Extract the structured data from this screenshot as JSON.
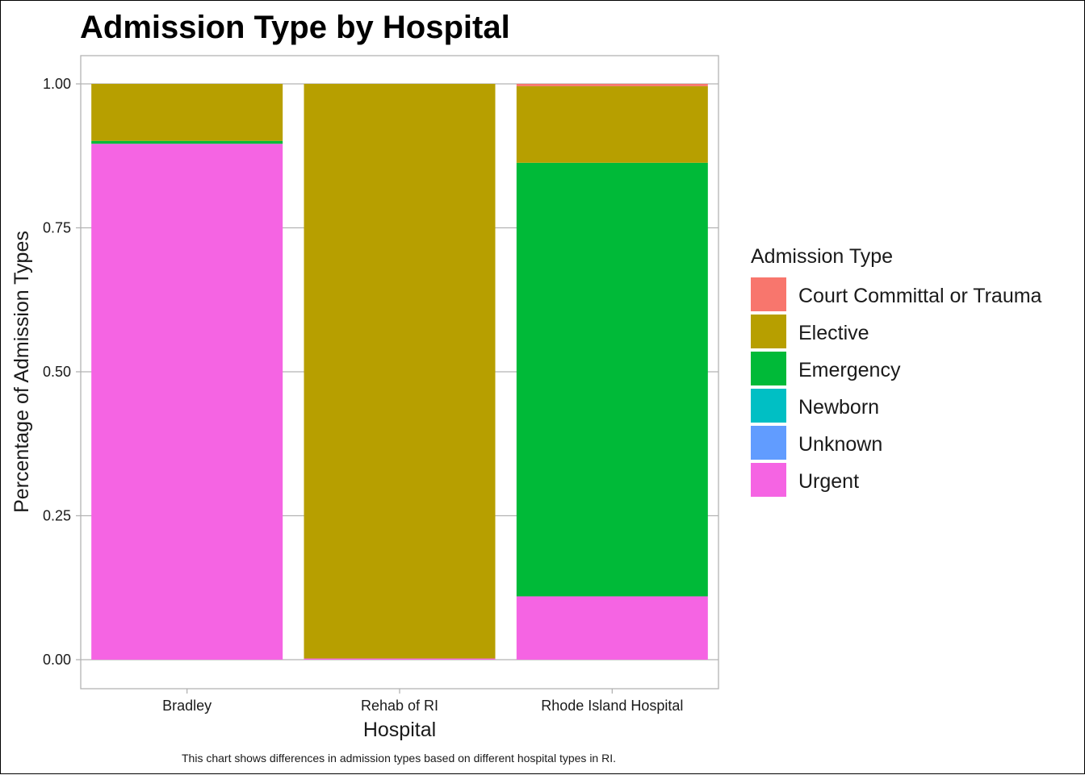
{
  "chart_data": {
    "type": "bar",
    "stacked": true,
    "title": "Admission Type by Hospital",
    "xlabel": "Hospital",
    "ylabel": "Percentage of Admission Types",
    "caption": "This chart shows differences in admission types based on different hospital types in RI.",
    "categories": [
      "Bradley",
      "Rehab of RI",
      "Rhode Island Hospital"
    ],
    "ylim": [
      0,
      1
    ],
    "yticks": [
      "0.00",
      "0.25",
      "0.50",
      "0.75",
      "1.00"
    ],
    "legend_title": "Admission Type",
    "legend_position": "right",
    "grid": true,
    "series": [
      {
        "name": "Court Committal or Trauma",
        "color": "#F8766D",
        "values": [
          0.0,
          0.0,
          0.004
        ]
      },
      {
        "name": "Elective",
        "color": "#B79F00",
        "values": [
          0.099,
          0.998,
          0.133
        ]
      },
      {
        "name": "Emergency",
        "color": "#00BA38",
        "values": [
          0.005,
          0.0,
          0.753
        ]
      },
      {
        "name": "Newborn",
        "color": "#00BFC4",
        "values": [
          0.0,
          0.0,
          0.0
        ]
      },
      {
        "name": "Unknown",
        "color": "#619CFF",
        "values": [
          0.0,
          0.0,
          0.0
        ]
      },
      {
        "name": "Urgent",
        "color": "#F564E3",
        "values": [
          0.896,
          0.002,
          0.11
        ]
      }
    ]
  }
}
